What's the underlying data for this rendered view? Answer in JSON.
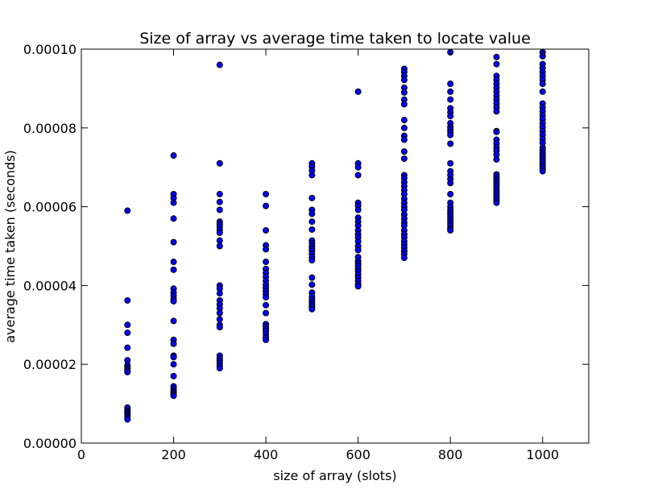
{
  "chart_data": {
    "type": "scatter",
    "title": "Size of array vs average time taken to locate value",
    "xlabel": "size of array (slots)",
    "ylabel": "average time taken (seconds)",
    "xlim": [
      0,
      1100
    ],
    "ylim": [
      0,
      0.0001
    ],
    "x_ticks": [
      0,
      200,
      400,
      600,
      800,
      1000
    ],
    "x_tick_labels": [
      "0",
      "200",
      "400",
      "600",
      "800",
      "1000"
    ],
    "y_ticks": [
      0,
      2e-05,
      4e-05,
      6e-05,
      8e-05,
      0.0001
    ],
    "y_tick_labels": [
      "0.00000",
      "0.00002",
      "0.00004",
      "0.00006",
      "0.00008",
      "0.00010"
    ],
    "grid": false,
    "legend": "none",
    "marker_color": "#0000ff",
    "marker_edge_color": "#000000",
    "series": [
      {
        "points": [
          [
            100,
            5.9e-05
          ],
          [
            100,
            3.62e-05
          ],
          [
            100,
            3e-05
          ],
          [
            100,
            2.8e-05
          ],
          [
            100,
            2.42e-05
          ],
          [
            100,
            2.1e-05
          ],
          [
            100,
            1.98e-05
          ],
          [
            100,
            1.92e-05
          ],
          [
            100,
            1.88e-05
          ],
          [
            100,
            1.84e-05
          ],
          [
            100,
            1.8e-05
          ],
          [
            100,
            9e-06
          ],
          [
            100,
            8.4e-06
          ],
          [
            100,
            8e-06
          ],
          [
            100,
            7.6e-06
          ],
          [
            100,
            7.2e-06
          ],
          [
            100,
            6.8e-06
          ],
          [
            100,
            6.4e-06
          ],
          [
            100,
            6e-06
          ],
          [
            200,
            7.3e-05
          ],
          [
            200,
            6.32e-05
          ],
          [
            200,
            6.22e-05
          ],
          [
            200,
            6.1e-05
          ],
          [
            200,
            5.7e-05
          ],
          [
            200,
            5.1e-05
          ],
          [
            200,
            4.6e-05
          ],
          [
            200,
            4.4e-05
          ],
          [
            200,
            3.92e-05
          ],
          [
            200,
            3.82e-05
          ],
          [
            200,
            3.74e-05
          ],
          [
            200,
            3.66e-05
          ],
          [
            200,
            3.6e-05
          ],
          [
            200,
            3.1e-05
          ],
          [
            200,
            2.62e-05
          ],
          [
            200,
            2.52e-05
          ],
          [
            200,
            2.22e-05
          ],
          [
            200,
            2.18e-05
          ],
          [
            200,
            2e-05
          ],
          [
            200,
            1.7e-05
          ],
          [
            200,
            1.44e-05
          ],
          [
            200,
            1.38e-05
          ],
          [
            200,
            1.32e-05
          ],
          [
            200,
            1.28e-05
          ],
          [
            200,
            1.24e-05
          ],
          [
            200,
            1.2e-05
          ],
          [
            300,
            9.6e-05
          ],
          [
            300,
            7.1e-05
          ],
          [
            300,
            6.32e-05
          ],
          [
            300,
            6.12e-05
          ],
          [
            300,
            5.92e-05
          ],
          [
            300,
            5.62e-05
          ],
          [
            300,
            5.56e-05
          ],
          [
            300,
            5.5e-05
          ],
          [
            300,
            5.42e-05
          ],
          [
            300,
            5.34e-05
          ],
          [
            300,
            5.14e-05
          ],
          [
            300,
            5e-05
          ],
          [
            300,
            4e-05
          ],
          [
            300,
            3.92e-05
          ],
          [
            300,
            3.8e-05
          ],
          [
            300,
            3.62e-05
          ],
          [
            300,
            3.52e-05
          ],
          [
            300,
            3.42e-05
          ],
          [
            300,
            3.3e-05
          ],
          [
            300,
            3.14e-05
          ],
          [
            300,
            3e-05
          ],
          [
            300,
            2.94e-05
          ],
          [
            300,
            2.22e-05
          ],
          [
            300,
            2.14e-05
          ],
          [
            300,
            2.08e-05
          ],
          [
            300,
            2.02e-05
          ],
          [
            300,
            1.96e-05
          ],
          [
            300,
            1.9e-05
          ],
          [
            400,
            6.32e-05
          ],
          [
            400,
            6.02e-05
          ],
          [
            400,
            5.4e-05
          ],
          [
            400,
            5.02e-05
          ],
          [
            400,
            4.92e-05
          ],
          [
            400,
            4.6e-05
          ],
          [
            400,
            4.42e-05
          ],
          [
            400,
            4.32e-05
          ],
          [
            400,
            4.22e-05
          ],
          [
            400,
            4.12e-05
          ],
          [
            400,
            4.02e-05
          ],
          [
            400,
            3.94e-05
          ],
          [
            400,
            3.86e-05
          ],
          [
            400,
            3.78e-05
          ],
          [
            400,
            3.7e-05
          ],
          [
            400,
            3.5e-05
          ],
          [
            400,
            3.3e-05
          ],
          [
            400,
            3.02e-05
          ],
          [
            400,
            2.96e-05
          ],
          [
            400,
            2.9e-05
          ],
          [
            400,
            2.84e-05
          ],
          [
            400,
            2.76e-05
          ],
          [
            400,
            2.68e-05
          ],
          [
            400,
            2.62e-05
          ],
          [
            500,
            7.1e-05
          ],
          [
            500,
            7.02e-05
          ],
          [
            500,
            6.92e-05
          ],
          [
            500,
            6.8e-05
          ],
          [
            500,
            6.22e-05
          ],
          [
            500,
            5.92e-05
          ],
          [
            500,
            5.82e-05
          ],
          [
            500,
            5.62e-05
          ],
          [
            500,
            5.42e-05
          ],
          [
            500,
            5.14e-05
          ],
          [
            500,
            5.08e-05
          ],
          [
            500,
            5e-05
          ],
          [
            500,
            4.94e-05
          ],
          [
            500,
            4.88e-05
          ],
          [
            500,
            4.8e-05
          ],
          [
            500,
            4.72e-05
          ],
          [
            500,
            4.64e-05
          ],
          [
            500,
            4.2e-05
          ],
          [
            500,
            4.02e-05
          ],
          [
            500,
            3.82e-05
          ],
          [
            500,
            3.72e-05
          ],
          [
            500,
            3.64e-05
          ],
          [
            500,
            3.58e-05
          ],
          [
            500,
            3.52e-05
          ],
          [
            500,
            3.46e-05
          ],
          [
            500,
            3.4e-05
          ],
          [
            600,
            8.92e-05
          ],
          [
            600,
            7.1e-05
          ],
          [
            600,
            7e-05
          ],
          [
            600,
            6.8e-05
          ],
          [
            600,
            6.1e-05
          ],
          [
            600,
            6.02e-05
          ],
          [
            600,
            5.92e-05
          ],
          [
            600,
            5.72e-05
          ],
          [
            600,
            5.62e-05
          ],
          [
            600,
            5.52e-05
          ],
          [
            600,
            5.4e-05
          ],
          [
            600,
            5.3e-05
          ],
          [
            600,
            5.22e-05
          ],
          [
            600,
            5.12e-05
          ],
          [
            600,
            5e-05
          ],
          [
            600,
            4.9e-05
          ],
          [
            600,
            4.72e-05
          ],
          [
            600,
            4.62e-05
          ],
          [
            600,
            4.56e-05
          ],
          [
            600,
            4.5e-05
          ],
          [
            600,
            4.42e-05
          ],
          [
            600,
            4.36e-05
          ],
          [
            600,
            4.28e-05
          ],
          [
            600,
            4.2e-05
          ],
          [
            600,
            4.12e-05
          ],
          [
            600,
            4.04e-05
          ],
          [
            600,
            3.98e-05
          ],
          [
            700,
            9.5e-05
          ],
          [
            700,
            9.42e-05
          ],
          [
            700,
            9.32e-05
          ],
          [
            700,
            9.22e-05
          ],
          [
            700,
            9.02e-05
          ],
          [
            700,
            8.9e-05
          ],
          [
            700,
            8.72e-05
          ],
          [
            700,
            8.6e-05
          ],
          [
            700,
            8.2e-05
          ],
          [
            700,
            8e-05
          ],
          [
            700,
            7.8e-05
          ],
          [
            700,
            7.7e-05
          ],
          [
            700,
            7.4e-05
          ],
          [
            700,
            7.22e-05
          ],
          [
            700,
            6.8e-05
          ],
          [
            700,
            6.72e-05
          ],
          [
            700,
            6.62e-05
          ],
          [
            700,
            6.52e-05
          ],
          [
            700,
            6.42e-05
          ],
          [
            700,
            6.32e-05
          ],
          [
            700,
            6.2e-05
          ],
          [
            700,
            6.1e-05
          ],
          [
            700,
            6e-05
          ],
          [
            700,
            5.92e-05
          ],
          [
            700,
            5.8e-05
          ],
          [
            700,
            5.7e-05
          ],
          [
            700,
            5.6e-05
          ],
          [
            700,
            5.52e-05
          ],
          [
            700,
            5.4e-05
          ],
          [
            700,
            5.3e-05
          ],
          [
            700,
            5.22e-05
          ],
          [
            700,
            5.12e-05
          ],
          [
            700,
            5.04e-05
          ],
          [
            700,
            4.96e-05
          ],
          [
            700,
            4.88e-05
          ],
          [
            700,
            4.8e-05
          ],
          [
            700,
            4.7e-05
          ],
          [
            800,
            9.92e-05
          ],
          [
            800,
            9.12e-05
          ],
          [
            800,
            8.92e-05
          ],
          [
            800,
            8.72e-05
          ],
          [
            800,
            8.5e-05
          ],
          [
            800,
            8.4e-05
          ],
          [
            800,
            8.3e-05
          ],
          [
            800,
            8.12e-05
          ],
          [
            800,
            8.02e-05
          ],
          [
            800,
            7.96e-05
          ],
          [
            800,
            7.9e-05
          ],
          [
            800,
            7.82e-05
          ],
          [
            800,
            7.6e-05
          ],
          [
            800,
            7.1e-05
          ],
          [
            800,
            6.9e-05
          ],
          [
            800,
            6.8e-05
          ],
          [
            800,
            6.7e-05
          ],
          [
            800,
            6.6e-05
          ],
          [
            800,
            6.32e-05
          ],
          [
            800,
            6.1e-05
          ],
          [
            800,
            6e-05
          ],
          [
            800,
            5.92e-05
          ],
          [
            800,
            5.86e-05
          ],
          [
            800,
            5.8e-05
          ],
          [
            800,
            5.74e-05
          ],
          [
            800,
            5.68e-05
          ],
          [
            800,
            5.62e-05
          ],
          [
            800,
            5.56e-05
          ],
          [
            800,
            5.5e-05
          ],
          [
            800,
            5.44e-05
          ],
          [
            800,
            5.4e-05
          ],
          [
            900,
            9.8e-05
          ],
          [
            900,
            9.62e-05
          ],
          [
            900,
            9.32e-05
          ],
          [
            900,
            9.22e-05
          ],
          [
            900,
            9.12e-05
          ],
          [
            900,
            9.02e-05
          ],
          [
            900,
            8.92e-05
          ],
          [
            900,
            8.82e-05
          ],
          [
            900,
            8.72e-05
          ],
          [
            900,
            8.62e-05
          ],
          [
            900,
            8.52e-05
          ],
          [
            900,
            8.42e-05
          ],
          [
            900,
            7.92e-05
          ],
          [
            900,
            7.9e-05
          ],
          [
            900,
            7.7e-05
          ],
          [
            900,
            7.6e-05
          ],
          [
            900,
            7.5e-05
          ],
          [
            900,
            7.42e-05
          ],
          [
            900,
            7.32e-05
          ],
          [
            900,
            7.2e-05
          ],
          [
            900,
            6.82e-05
          ],
          [
            900,
            6.76e-05
          ],
          [
            900,
            6.7e-05
          ],
          [
            900,
            6.64e-05
          ],
          [
            900,
            6.58e-05
          ],
          [
            900,
            6.52e-05
          ],
          [
            900,
            6.46e-05
          ],
          [
            900,
            6.4e-05
          ],
          [
            900,
            6.34e-05
          ],
          [
            900,
            6.28e-05
          ],
          [
            900,
            6.22e-05
          ],
          [
            900,
            6.16e-05
          ],
          [
            900,
            6.1e-05
          ],
          [
            1000,
            9.92e-05
          ],
          [
            1000,
            9.82e-05
          ],
          [
            1000,
            9.62e-05
          ],
          [
            1000,
            9.52e-05
          ],
          [
            1000,
            9.42e-05
          ],
          [
            1000,
            9.32e-05
          ],
          [
            1000,
            9.22e-05
          ],
          [
            1000,
            9.12e-05
          ],
          [
            1000,
            8.92e-05
          ],
          [
            1000,
            8.62e-05
          ],
          [
            1000,
            8.52e-05
          ],
          [
            1000,
            8.42e-05
          ],
          [
            1000,
            8.32e-05
          ],
          [
            1000,
            8.22e-05
          ],
          [
            1000,
            8.12e-05
          ],
          [
            1000,
            8.02e-05
          ],
          [
            1000,
            7.92e-05
          ],
          [
            1000,
            7.82e-05
          ],
          [
            1000,
            7.72e-05
          ],
          [
            1000,
            7.62e-05
          ],
          [
            1000,
            7.5e-05
          ],
          [
            1000,
            7.44e-05
          ],
          [
            1000,
            7.38e-05
          ],
          [
            1000,
            7.32e-05
          ],
          [
            1000,
            7.26e-05
          ],
          [
            1000,
            7.2e-05
          ],
          [
            1000,
            7.14e-05
          ],
          [
            1000,
            7.08e-05
          ],
          [
            1000,
            7.02e-05
          ],
          [
            1000,
            6.96e-05
          ],
          [
            1000,
            6.9e-05
          ]
        ]
      }
    ]
  }
}
